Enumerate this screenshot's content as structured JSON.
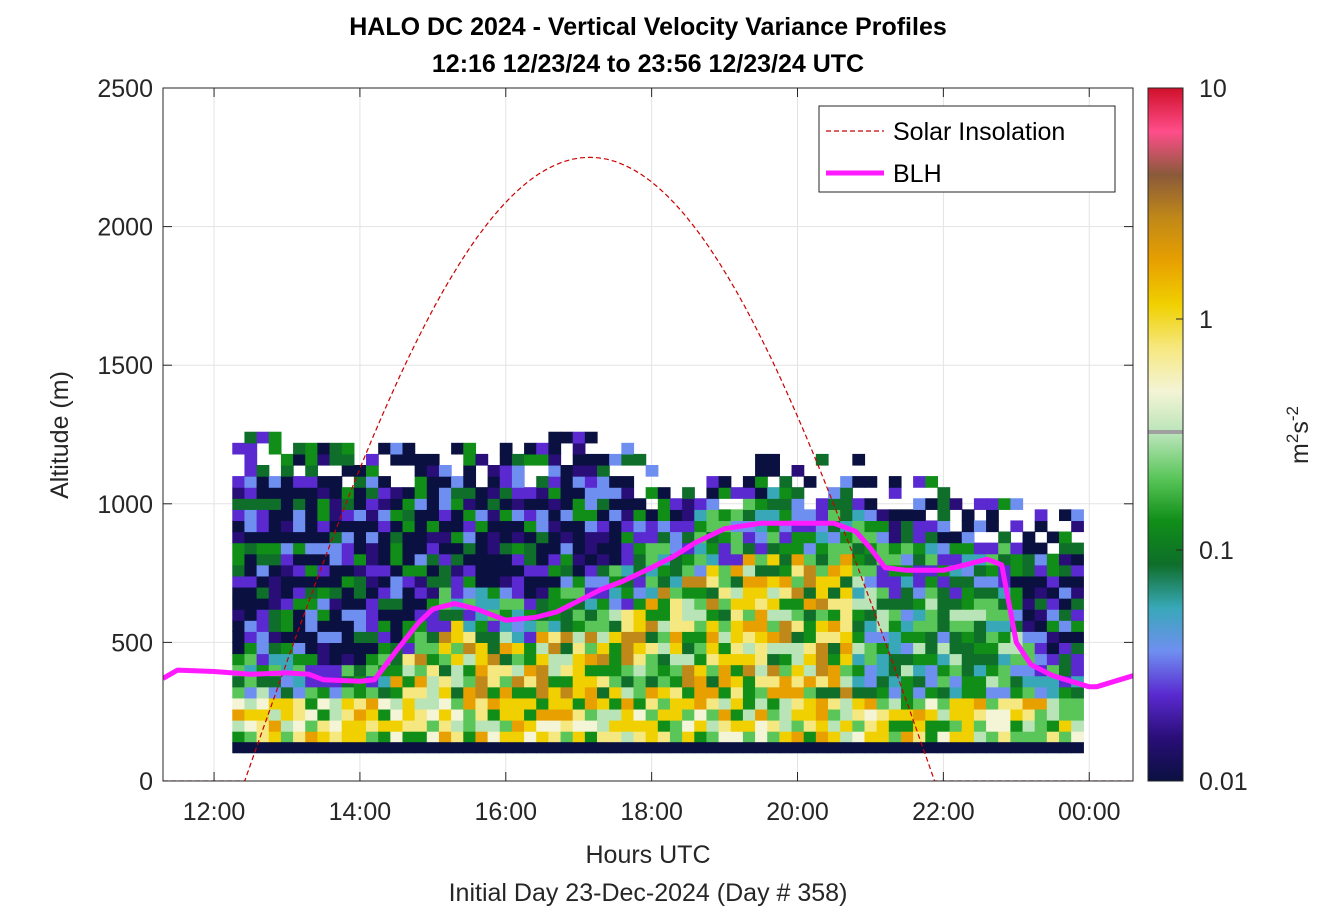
{
  "chart_data": {
    "type": "heatmap",
    "title": "HALO DC 2024 - Vertical Velocity Variance Profiles",
    "subtitle": "12:16 12/23/24 to 23:56 12/23/24  UTC",
    "xlabel": "Hours UTC",
    "ylabel": "Altitude (m)",
    "footer": "Initial Day 23-Dec-2024 (Day # 358)",
    "xlim_hours": [
      11.3,
      24.6
    ],
    "ylim": [
      0,
      2500
    ],
    "x_ticks": [
      {
        "hour": 12,
        "label": "12:00"
      },
      {
        "hour": 14,
        "label": "14:00"
      },
      {
        "hour": 16,
        "label": "16:00"
      },
      {
        "hour": 18,
        "label": "18:00"
      },
      {
        "hour": 20,
        "label": "20:00"
      },
      {
        "hour": 22,
        "label": "22:00"
      },
      {
        "hour": 24,
        "label": "00:00"
      }
    ],
    "y_ticks": [
      {
        "value": 0,
        "label": "0"
      },
      {
        "value": 500,
        "label": "500"
      },
      {
        "value": 1000,
        "label": "1000"
      },
      {
        "value": 1500,
        "label": "1500"
      },
      {
        "value": 2000,
        "label": "2000"
      },
      {
        "value": 2500,
        "label": "2500"
      }
    ],
    "grid": true,
    "legend": {
      "placement": "top-right",
      "entries": [
        {
          "name": "Solar Insolation",
          "color": "#cc0000",
          "style": "dashed"
        },
        {
          "name": "BLH",
          "color": "#ff1aff",
          "style": "solid"
        }
      ]
    },
    "colorbar": {
      "label_base": "m",
      "label_sup1": "2",
      "label_mid": "s",
      "label_sup2": "-2",
      "scale": "log",
      "range": [
        0.01,
        10
      ],
      "ticks": [
        {
          "value": 0.01,
          "label": "0.01"
        },
        {
          "value": 0.1,
          "label": "0.1"
        },
        {
          "value": 1,
          "label": "1"
        },
        {
          "value": 10,
          "label": "10"
        }
      ],
      "colors": [
        "#0a1040",
        "#2a0e78",
        "#5a2ad0",
        "#6f8ff0",
        "#38a8b8",
        "#0e6e2a",
        "#108e18",
        "#5ac65a",
        "#b8e4b8",
        "#f4f4d6",
        "#f6e880",
        "#f0d000",
        "#e8a000",
        "#c08818",
        "#8a5a3a",
        "#ff4d8a",
        "#d0102a"
      ]
    },
    "heatmap": {
      "time_bin_hours": 0.1667,
      "alt_bin_m": 40,
      "data_start_hour": 12.25,
      "data_end_hour": 23.9,
      "low_alt_m": 100,
      "top_profile_m": [
        [
          12.3,
          1220
        ],
        [
          12.6,
          1240
        ],
        [
          13.0,
          1200
        ],
        [
          14.0,
          1180
        ],
        [
          15.0,
          1190
        ],
        [
          16.0,
          1200
        ],
        [
          16.5,
          1230
        ],
        [
          17.3,
          1230
        ],
        [
          17.8,
          1160
        ],
        [
          18.0,
          1100
        ],
        [
          19.0,
          1100
        ],
        [
          19.5,
          1150
        ],
        [
          20.0,
          1130
        ],
        [
          20.6,
          1160
        ],
        [
          21.0,
          1130
        ],
        [
          21.4,
          1070
        ],
        [
          22.0,
          1060
        ],
        [
          22.5,
          990
        ],
        [
          23.0,
          980
        ],
        [
          23.9,
          960
        ]
      ]
    },
    "blh": {
      "hours": [
        11.3,
        11.5,
        12.0,
        12.5,
        13.0,
        13.3,
        13.5,
        14.0,
        14.2,
        14.5,
        14.8,
        15.0,
        15.3,
        15.6,
        16.0,
        16.4,
        16.7,
        17.0,
        17.3,
        17.6,
        18.0,
        18.3,
        18.6,
        19.0,
        19.5,
        20.0,
        20.5,
        20.8,
        21.0,
        21.2,
        21.5,
        22.0,
        22.3,
        22.6,
        22.8,
        23.0,
        23.2,
        23.5,
        24.0,
        24.1,
        24.6
      ],
      "values_m": [
        370,
        400,
        395,
        385,
        390,
        385,
        365,
        360,
        365,
        470,
        570,
        620,
        640,
        620,
        580,
        590,
        610,
        650,
        690,
        720,
        770,
        810,
        860,
        910,
        930,
        930,
        930,
        900,
        840,
        770,
        760,
        760,
        780,
        800,
        780,
        500,
        420,
        380,
        340,
        340,
        380
      ]
    },
    "solar_insolation": {
      "sunrise_hour": 12.42,
      "peak_hour": 17.15,
      "sunset_hour": 21.88,
      "peak_m": 2250
    }
  }
}
